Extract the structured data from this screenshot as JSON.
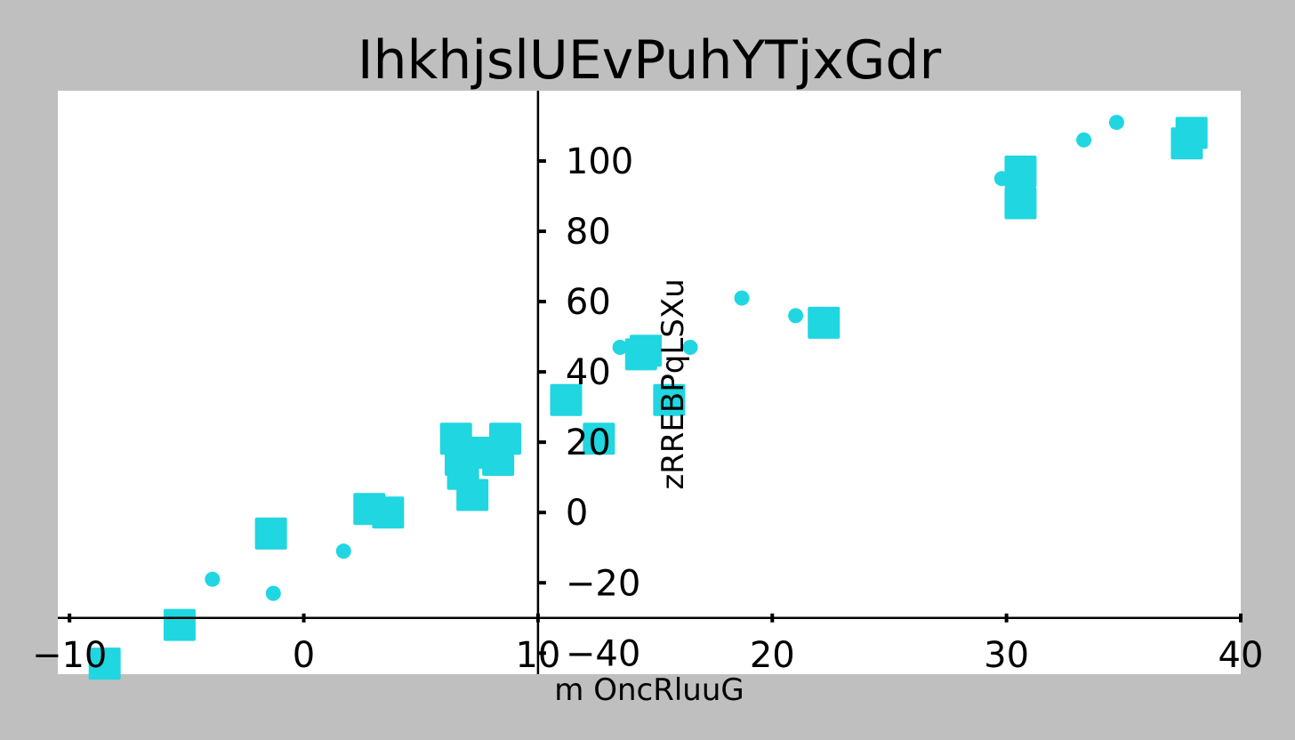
{
  "chart_data": {
    "type": "scatter",
    "title": "IhkhjslUEvPuhYTjxGdr",
    "xlabel": "m OncRluuG",
    "ylabel": "zRREBPqLSXu",
    "xlim": [
      -10.5,
      40
    ],
    "ylim": [
      -46,
      120
    ],
    "x_ticks": [
      -10,
      0,
      10,
      20,
      30,
      40
    ],
    "x_tick_labels": [
      "−10",
      "0",
      "10",
      "20",
      "30",
      "40"
    ],
    "y_ticks": [
      -40,
      -20,
      0,
      20,
      40,
      60,
      80,
      100
    ],
    "y_tick_labels": [
      "−40",
      "−20",
      "0",
      "20",
      "40",
      "60",
      "80",
      "100"
    ],
    "grid": false,
    "spines": "centered",
    "colors": {
      "background": "#bfbfbf",
      "plot_area": "#ffffff",
      "marker": "#20d6e0"
    },
    "series": [
      {
        "marker": "circle",
        "x": [
          -3.9,
          -1.3,
          1.7,
          13.5,
          16.5,
          18.7,
          21.0,
          29.8,
          33.3,
          34.7
        ],
        "y": [
          -19,
          -23,
          -11,
          47,
          47,
          61,
          56,
          95,
          106,
          111
        ]
      },
      {
        "marker": "square",
        "x": [
          -8.5,
          -5.3,
          -1.4,
          2.8,
          3.6,
          6.5,
          6.7,
          6.8,
          7.2,
          7.5,
          8.3,
          8.6,
          11.2,
          12.6,
          14.4,
          14.6,
          15.6,
          22.2,
          30.6,
          30.6,
          37.7,
          37.9
        ],
        "y": [
          -43,
          -32,
          -6,
          1,
          0,
          21,
          15,
          11,
          5,
          17,
          15,
          21,
          32,
          21,
          45,
          46,
          32,
          54,
          97,
          88,
          105,
          108
        ]
      }
    ]
  }
}
